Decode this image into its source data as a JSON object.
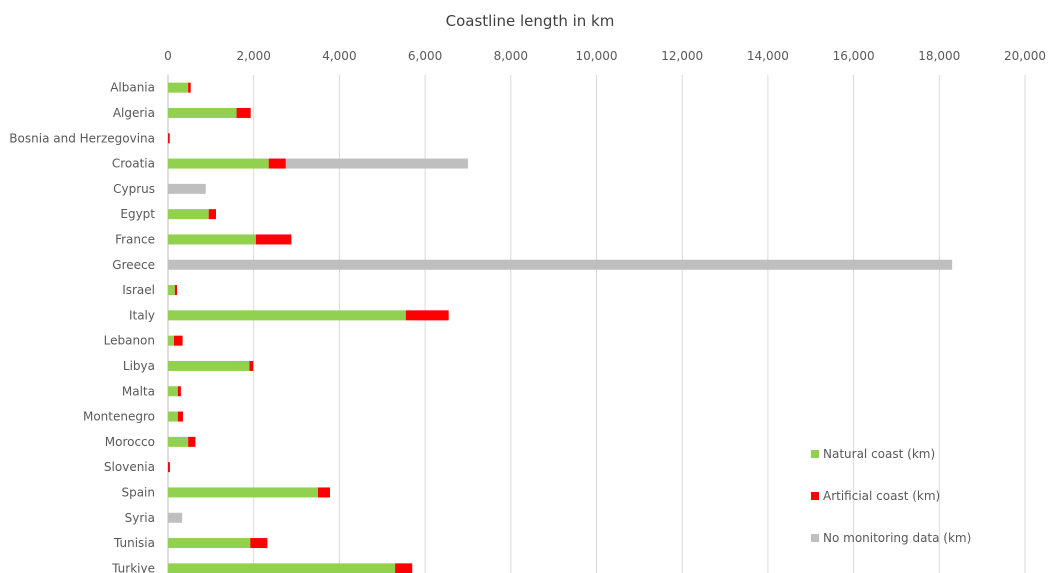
{
  "chart_data": {
    "type": "bar",
    "orientation": "horizontal",
    "stacked": true,
    "title": "Coastline length in km",
    "xlabel": "",
    "ylabel": "",
    "xlim": [
      0,
      20000
    ],
    "x_ticks": [
      0,
      2000,
      4000,
      6000,
      8000,
      10000,
      12000,
      14000,
      16000,
      18000,
      20000
    ],
    "x_tick_labels": [
      "0",
      "2,000",
      "4,000",
      "6,000",
      "8,000",
      "10,000",
      "12,000",
      "14,000",
      "16,000",
      "18,000",
      "20,000"
    ],
    "x_axis_position": "top",
    "grid": true,
    "legend_position": "bottom-right",
    "categories": [
      "Albania",
      "Algeria",
      "Bosnia and Herzegovina",
      "Croatia",
      "Cyprus",
      "Egypt",
      "France",
      "Greece",
      "Israel",
      "Italy",
      "Lebanon",
      "Libya",
      "Malta",
      "Montenegro",
      "Morocco",
      "Slovenia",
      "Spain",
      "Syria",
      "Tunisia",
      "Turkiye"
    ],
    "series": [
      {
        "name": "Natural coast (km)",
        "color": "#92d050",
        "values": [
          470,
          1600,
          0,
          2350,
          0,
          950,
          2050,
          0,
          160,
          5550,
          140,
          1900,
          230,
          230,
          470,
          0,
          3500,
          0,
          1920,
          5300
        ]
      },
      {
        "name": "Artificial coast (km)",
        "color": "#ff0000",
        "values": [
          60,
          330,
          40,
          400,
          0,
          170,
          830,
          0,
          50,
          1000,
          200,
          90,
          70,
          120,
          170,
          45,
          280,
          0,
          400,
          400
        ]
      },
      {
        "name": "No monitoring data (km)",
        "color": "#bfbfbf",
        "values": [
          0,
          0,
          0,
          4250,
          880,
          0,
          0,
          18300,
          0,
          0,
          0,
          0,
          0,
          0,
          0,
          0,
          0,
          330,
          0,
          0
        ]
      }
    ]
  }
}
